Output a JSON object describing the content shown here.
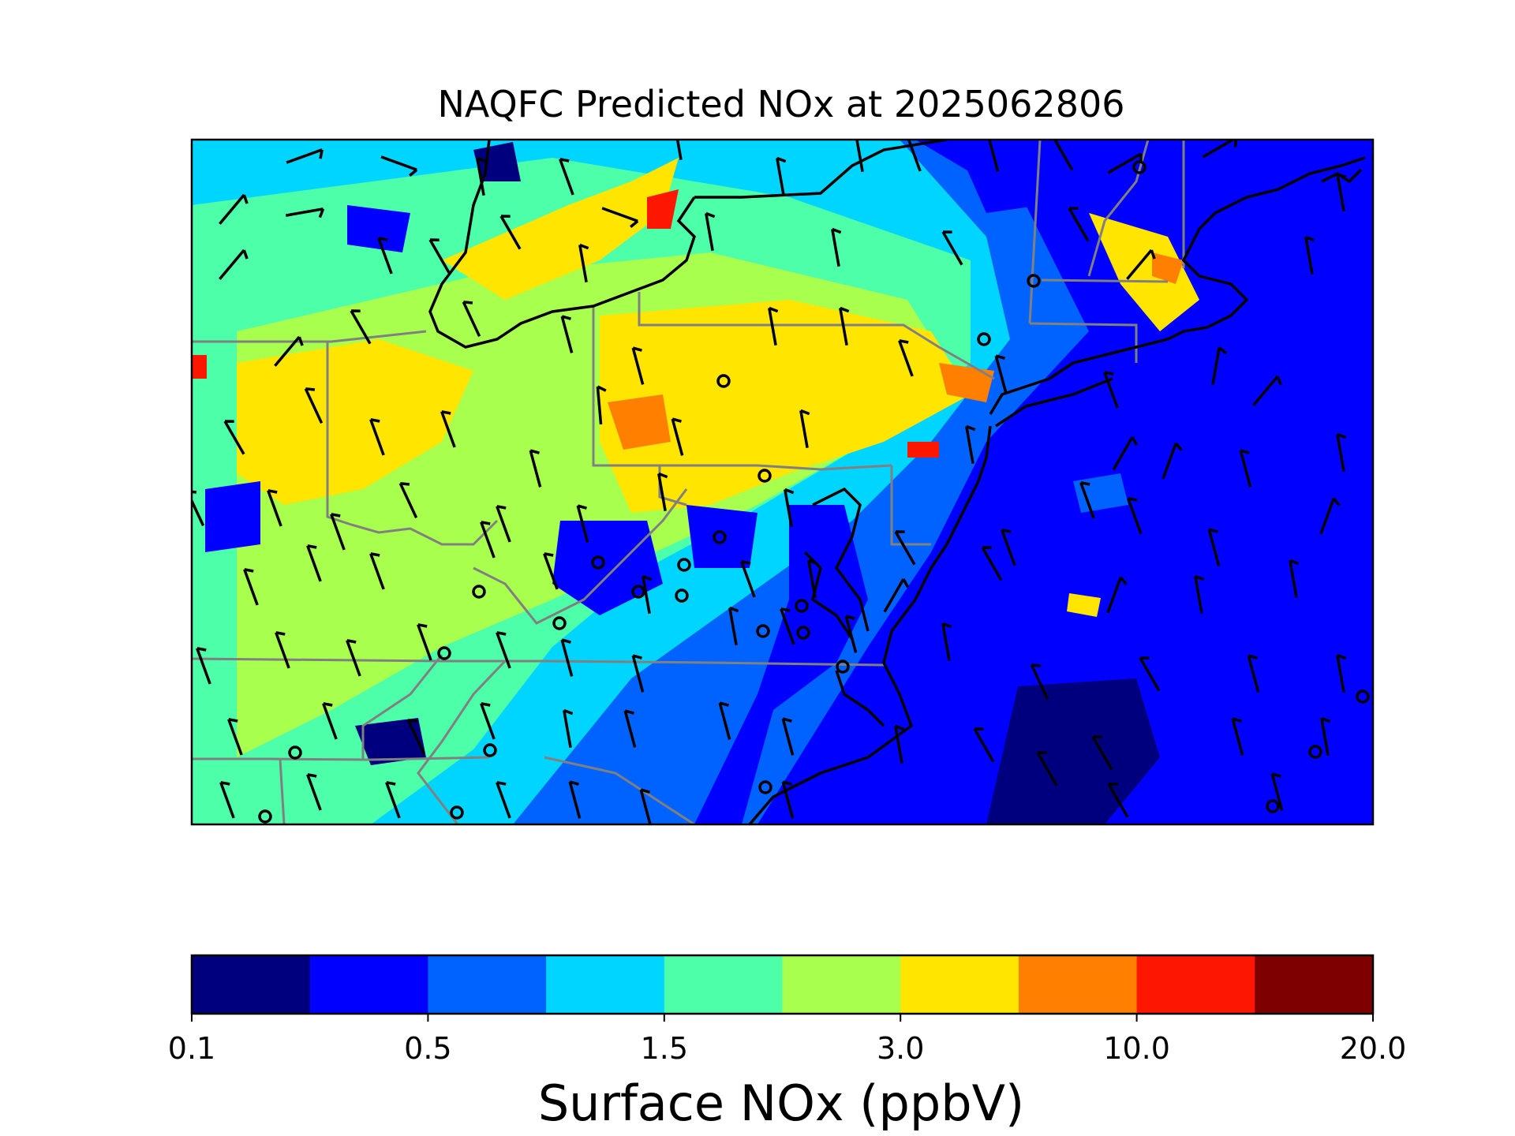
{
  "title": "NAQFC Predicted NOx at 2025062806",
  "colorbar": {
    "label": "Surface NOx (ppbV)",
    "tick_labels": [
      "0.1",
      "0.5",
      "1.5",
      "3.0",
      "10.0",
      "20.0"
    ],
    "colors": [
      "#00007f",
      "#0000fe",
      "#0063ff",
      "#00d5ff",
      "#4effa9",
      "#a9ff4e",
      "#ffe500",
      "#ff7f00",
      "#fe1700",
      "#7f0000"
    ]
  },
  "map": {
    "state_border_color": "#808080",
    "coastline_color": "#000000",
    "stations": 24
  }
}
